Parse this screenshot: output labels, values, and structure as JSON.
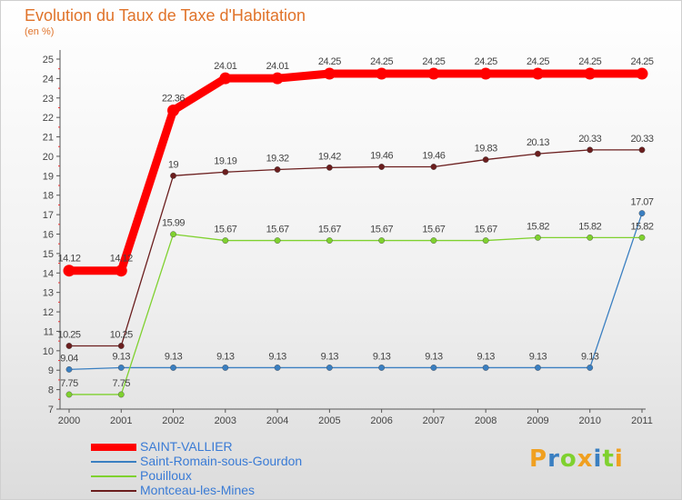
{
  "chart_data": {
    "type": "line",
    "title": "Evolution du Taux de Taxe d'Habitation",
    "subtitle": "(en %)",
    "categories": [
      "2000",
      "2001",
      "2002",
      "2003",
      "2004",
      "2005",
      "2006",
      "2007",
      "2008",
      "2009",
      "2010",
      "2011"
    ],
    "ylim": [
      7,
      25
    ],
    "yticks": [
      7,
      8,
      9,
      10,
      11,
      12,
      13,
      14,
      15,
      16,
      17,
      18,
      19,
      20,
      21,
      22,
      23,
      24,
      25
    ],
    "grid": false,
    "legend_position": "bottom-left",
    "series": [
      {
        "name": "SAINT-VALLIER",
        "color": "#ff0000",
        "values": [
          14.12,
          14.12,
          22.36,
          24.01,
          24.01,
          24.25,
          24.25,
          24.25,
          24.25,
          24.25,
          24.25,
          24.25
        ]
      },
      {
        "name": "Saint-Romain-sous-Gourdon",
        "color": "#3a7fc1",
        "values": [
          9.04,
          9.13,
          9.13,
          9.13,
          9.13,
          9.13,
          9.13,
          9.13,
          9.13,
          9.13,
          9.13,
          17.07
        ]
      },
      {
        "name": "Pouilloux",
        "color": "#7fd12f",
        "values": [
          7.75,
          7.75,
          15.99,
          15.67,
          15.67,
          15.67,
          15.67,
          15.67,
          15.67,
          15.82,
          15.82,
          15.82
        ]
      },
      {
        "name": "Montceau-les-Mines",
        "color": "#6b1e1e",
        "values": [
          10.25,
          10.25,
          19,
          19.19,
          19.32,
          19.42,
          19.46,
          19.46,
          19.83,
          20.13,
          20.33,
          20.33
        ]
      }
    ]
  },
  "logo": {
    "letters": [
      "P",
      "r",
      "o",
      "x",
      "i",
      "t",
      "i"
    ],
    "colors": [
      "#f0a020",
      "#3a7fc1",
      "#7fd12f",
      "#f0a020",
      "#3a7fc1",
      "#7fd12f",
      "#f0a020"
    ]
  }
}
